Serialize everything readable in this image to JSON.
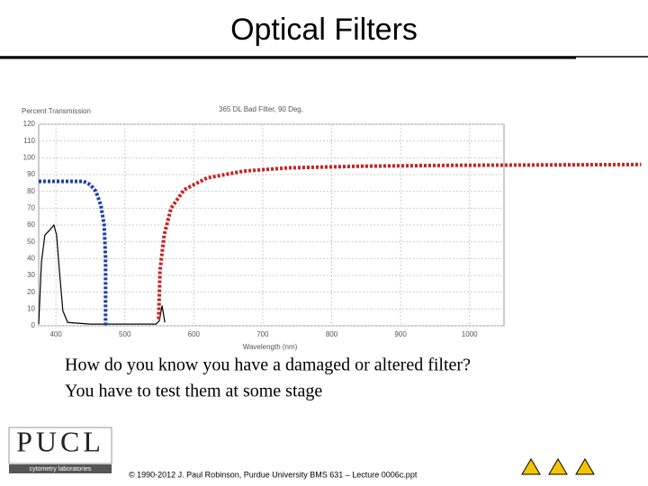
{
  "title": "Optical Filters",
  "body": [
    "How do you know you have a damaged or altered filter?",
    "You have to test them at some stage"
  ],
  "footer": "© 1990-2012 J. Paul Robinson, Purdue University BMS 631 – Lecture 0006c.ppt",
  "logo": {
    "name": "PUCL",
    "caption": "cytometry laboratories"
  },
  "chart_data": {
    "type": "line",
    "title": "365 DL Bad Filter, 90 Deg.",
    "y_label": "Percent Transmission",
    "x_label": "Wavelength (nm)",
    "xlim": [
      375,
      1050
    ],
    "ylim": [
      0,
      120
    ],
    "xticks": [
      400,
      500,
      600,
      700,
      800,
      900,
      1000
    ],
    "yticks": [
      0,
      10,
      20,
      30,
      40,
      50,
      60,
      70,
      80,
      90,
      100,
      110,
      120
    ],
    "grid": true,
    "series": [
      {
        "color": "#000000",
        "linestyle": "solid",
        "x": [
          375,
          379,
          384,
          391,
          397,
          401,
          405,
          410,
          417,
          450,
          545,
          550,
          554,
          558
        ],
        "values": [
          1,
          38,
          54,
          57,
          60,
          54,
          33,
          9,
          2,
          1,
          1,
          3,
          12,
          2
        ]
      },
      {
        "color": "#1f3fa8",
        "linestyle": "dotted",
        "x": [
          375,
          390,
          420,
          440,
          450,
          458,
          465,
          470,
          472,
          472
        ],
        "values": [
          86,
          86,
          86,
          86,
          84,
          80,
          72,
          60,
          40,
          0
        ]
      },
      {
        "color": "#cc2222",
        "linestyle": "dotted",
        "x": [
          549,
          551,
          557,
          567,
          586,
          619,
          671,
          736,
          841,
          971,
          1249
        ],
        "values": [
          4,
          33,
          54,
          70,
          81,
          88,
          92,
          94,
          95,
          95.5,
          96
        ]
      }
    ]
  }
}
